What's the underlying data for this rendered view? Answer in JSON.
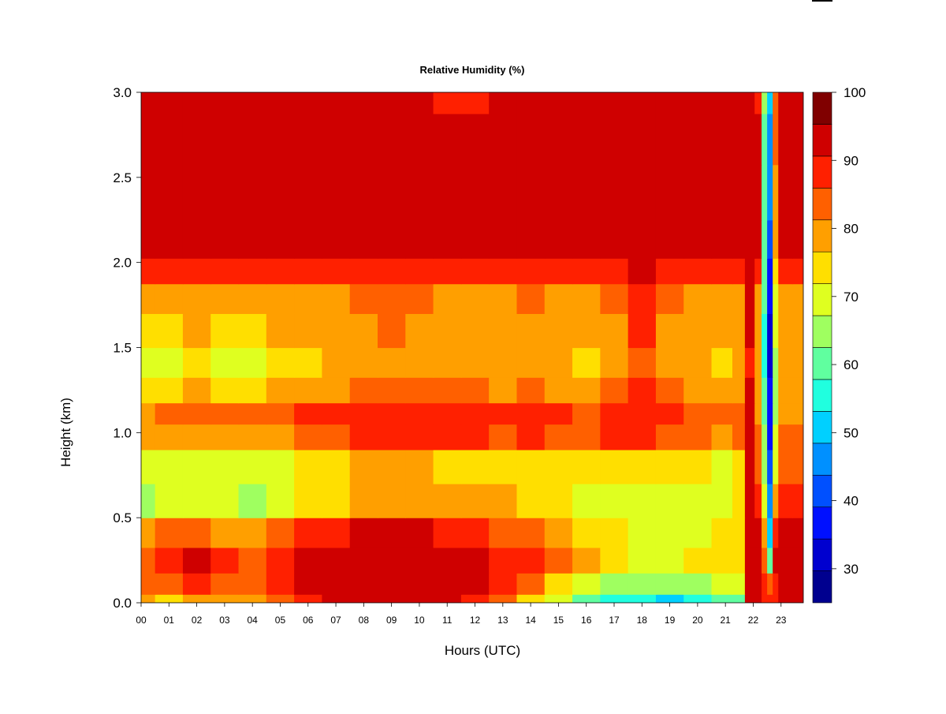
{
  "chart_data": {
    "type": "heatmap",
    "title": "Relative Humidity (%)",
    "xlabel": "Hours (UTC)",
    "ylabel": "Height (km)",
    "xlim": [
      0,
      23.8
    ],
    "ylim": [
      0.0,
      3.0
    ],
    "x_ticks": [
      "00",
      "01",
      "02",
      "03",
      "04",
      "05",
      "06",
      "07",
      "08",
      "09",
      "10",
      "11",
      "12",
      "13",
      "14",
      "15",
      "16",
      "17",
      "18",
      "19",
      "20",
      "21",
      "22",
      "23"
    ],
    "y_ticks": [
      "0.0",
      "0.5",
      "1.0",
      "1.5",
      "2.0",
      "2.5",
      "3.0"
    ],
    "colorbar": {
      "min": 25,
      "max": 100,
      "step": 5,
      "tick_labels": [
        "30",
        "40",
        "50",
        "60",
        "70",
        "80",
        "90",
        "100"
      ],
      "colors": [
        "#00008f",
        "#0000cf",
        "#0010ff",
        "#0050ff",
        "#0090ff",
        "#00d0ff",
        "#20ffdf",
        "#60ff9f",
        "#9fff60",
        "#dfff20",
        "#ffdf00",
        "#ff9f00",
        "#ff6000",
        "#ff2000",
        "#cf0000",
        "#800000"
      ]
    },
    "x_hours": [
      0,
      1,
      2,
      3,
      4,
      5,
      6,
      7,
      8,
      9,
      10,
      11,
      12,
      13,
      14,
      15,
      16,
      17,
      18,
      19,
      20,
      21,
      21.5,
      21.9,
      22.2,
      22.4,
      22.6,
      22.8,
      23.0,
      23.8
    ],
    "y_km": [
      0.0,
      0.1,
      0.25,
      0.4,
      0.6,
      0.8,
      1.0,
      1.1,
      1.25,
      1.4,
      1.6,
      1.8,
      1.95,
      2.1,
      2.4,
      2.75,
      3.0
    ],
    "rh_percent": [
      [
        80,
        78,
        80,
        80,
        80,
        85,
        90,
        95,
        97,
        98,
        97,
        95,
        92,
        88,
        78,
        70,
        62,
        58,
        55,
        53,
        55,
        60,
        62,
        95,
        95,
        92,
        90,
        92,
        95,
        95
      ],
      [
        85,
        88,
        90,
        85,
        85,
        90,
        95,
        97,
        98,
        99,
        98,
        97,
        95,
        92,
        85,
        78,
        72,
        68,
        65,
        65,
        68,
        70,
        72,
        98,
        97,
        90,
        85,
        92,
        97,
        97
      ],
      [
        88,
        92,
        95,
        90,
        88,
        92,
        97,
        98,
        99,
        99,
        99,
        98,
        97,
        94,
        90,
        85,
        80,
        76,
        72,
        72,
        75,
        76,
        78,
        99,
        98,
        85,
        60,
        95,
        98,
        98
      ],
      [
        82,
        85,
        85,
        82,
        80,
        85,
        90,
        93,
        95,
        96,
        95,
        93,
        90,
        88,
        86,
        82,
        78,
        75,
        72,
        72,
        74,
        75,
        78,
        97,
        95,
        80,
        50,
        90,
        96,
        96
      ],
      [
        68,
        70,
        72,
        70,
        68,
        72,
        75,
        78,
        80,
        82,
        80,
        80,
        80,
        80,
        78,
        76,
        74,
        72,
        70,
        70,
        70,
        72,
        75,
        95,
        90,
        70,
        45,
        80,
        92,
        92
      ],
      [
        72,
        72,
        74,
        72,
        70,
        74,
        76,
        78,
        80,
        82,
        80,
        78,
        78,
        78,
        78,
        76,
        76,
        78,
        78,
        76,
        75,
        74,
        76,
        95,
        88,
        68,
        40,
        72,
        88,
        88
      ],
      [
        80,
        82,
        84,
        82,
        82,
        84,
        86,
        88,
        90,
        92,
        90,
        90,
        90,
        88,
        90,
        88,
        86,
        90,
        92,
        88,
        85,
        84,
        86,
        96,
        86,
        65,
        38,
        70,
        85,
        85
      ],
      [
        84,
        86,
        88,
        86,
        86,
        88,
        90,
        90,
        92,
        94,
        92,
        92,
        92,
        90,
        92,
        90,
        88,
        92,
        94,
        90,
        88,
        86,
        88,
        96,
        84,
        62,
        36,
        68,
        84,
        84
      ],
      [
        78,
        78,
        80,
        78,
        78,
        80,
        82,
        84,
        86,
        88,
        86,
        86,
        86,
        84,
        86,
        84,
        82,
        86,
        90,
        86,
        84,
        82,
        84,
        95,
        82,
        60,
        35,
        68,
        82,
        82
      ],
      [
        74,
        74,
        76,
        74,
        74,
        76,
        78,
        80,
        82,
        84,
        82,
        80,
        80,
        80,
        82,
        80,
        78,
        82,
        88,
        82,
        80,
        78,
        80,
        94,
        80,
        58,
        34,
        68,
        80,
        80
      ],
      [
        78,
        78,
        80,
        78,
        78,
        80,
        82,
        82,
        84,
        86,
        84,
        82,
        82,
        82,
        84,
        82,
        80,
        84,
        90,
        84,
        82,
        80,
        82,
        95,
        82,
        58,
        34,
        70,
        82,
        82
      ],
      [
        82,
        82,
        84,
        82,
        82,
        84,
        84,
        84,
        86,
        88,
        86,
        84,
        84,
        84,
        86,
        84,
        82,
        86,
        92,
        86,
        84,
        82,
        84,
        95,
        84,
        60,
        36,
        72,
        84,
        84
      ],
      [
        90,
        90,
        92,
        90,
        90,
        90,
        92,
        92,
        92,
        94,
        92,
        90,
        90,
        90,
        92,
        90,
        90,
        92,
        95,
        92,
        90,
        90,
        90,
        96,
        90,
        62,
        38,
        76,
        90,
        90
      ],
      [
        98,
        98,
        98,
        98,
        98,
        98,
        98,
        98,
        98,
        98,
        98,
        98,
        98,
        98,
        98,
        98,
        98,
        98,
        98,
        98,
        98,
        98,
        98,
        99,
        96,
        62,
        40,
        80,
        98,
        98
      ],
      [
        99,
        99,
        99,
        99,
        99,
        99,
        99,
        99,
        99,
        99,
        99,
        99,
        99,
        99,
        99,
        99,
        99,
        99,
        99,
        99,
        99,
        99,
        99,
        99,
        97,
        62,
        45,
        82,
        99,
        99
      ],
      [
        98,
        98,
        98,
        98,
        98,
        98,
        98,
        98,
        98,
        98,
        98,
        98,
        98,
        98,
        98,
        98,
        98,
        98,
        98,
        98,
        98,
        98,
        98,
        99,
        96,
        64,
        48,
        85,
        98,
        98
      ],
      [
        95,
        95,
        96,
        96,
        96,
        96,
        96,
        97,
        97,
        96,
        96,
        94,
        94,
        96,
        96,
        96,
        96,
        96,
        96,
        95,
        96,
        96,
        96,
        98,
        94,
        66,
        50,
        85,
        96,
        96
      ]
    ]
  }
}
